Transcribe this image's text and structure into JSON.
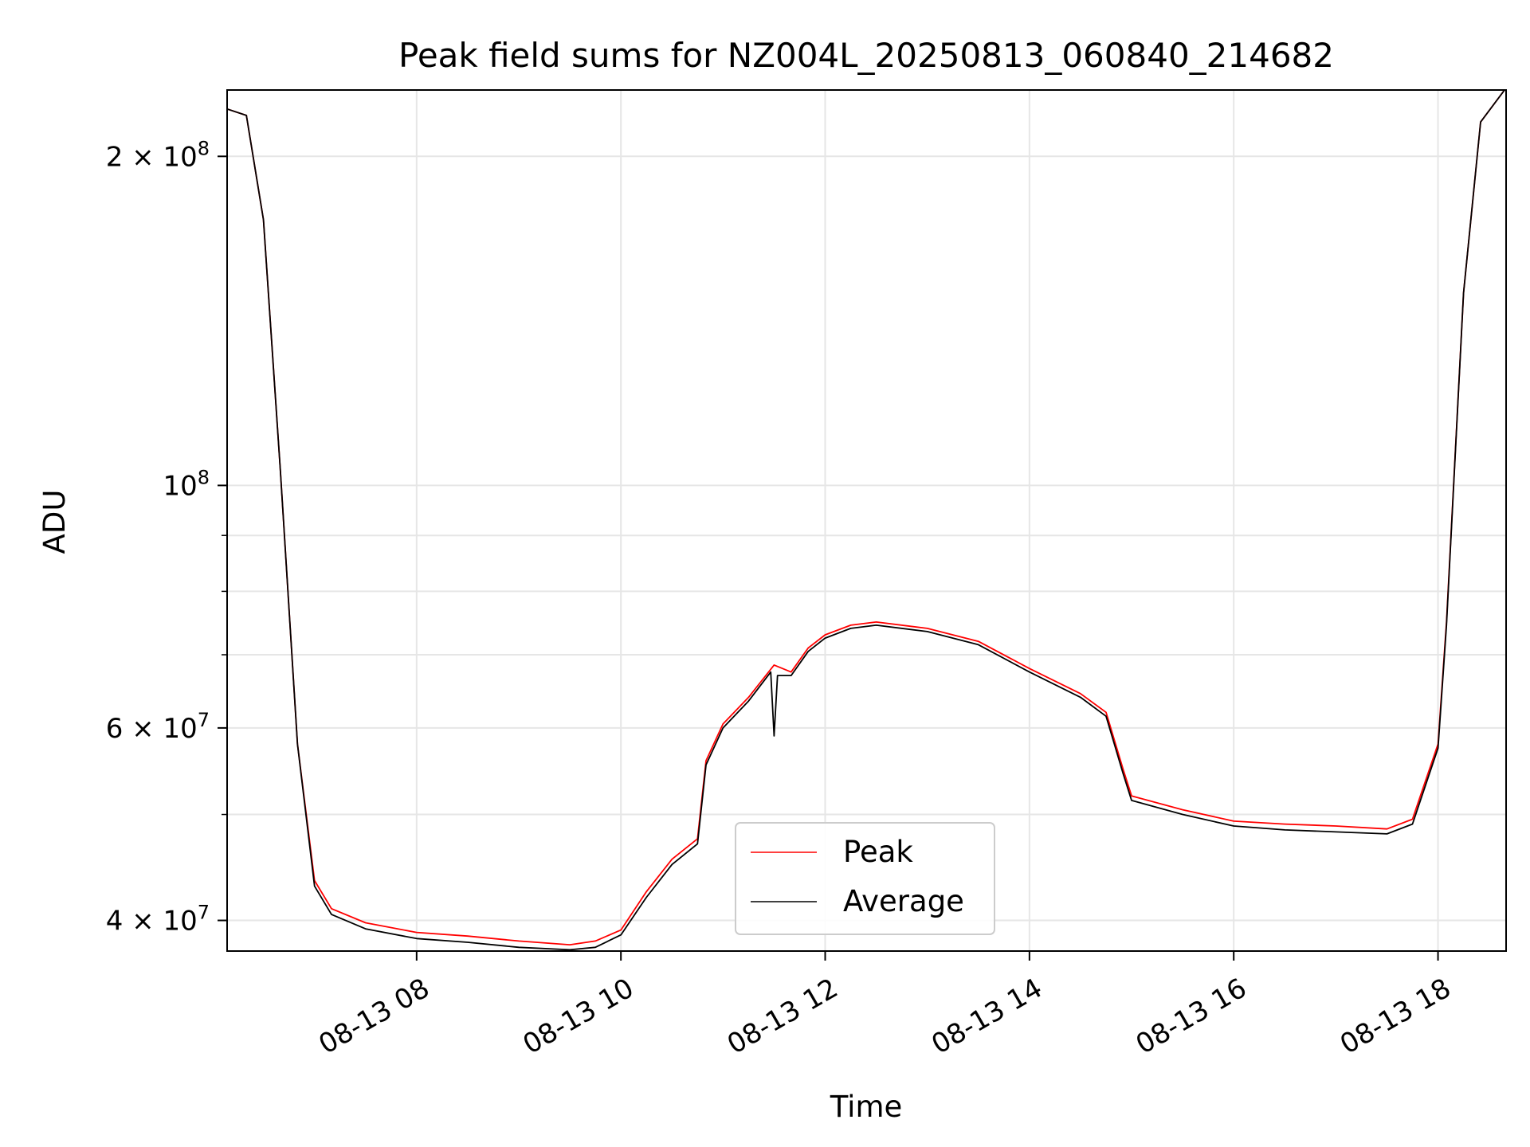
{
  "chart_data": {
    "type": "line",
    "title": "Peak field sums for NZ004L_20250813_060840_214682",
    "xlabel": "Time",
    "ylabel": "ADU",
    "y_scale": "log",
    "ylim": [
      37500000,
      230000000
    ],
    "xlim": [
      "2025-08-13 06:08:40",
      "2025-08-13 18:40:00"
    ],
    "x_ticks": [
      {
        "value": "2025-08-13 08:00",
        "label": "08-13 08"
      },
      {
        "value": "2025-08-13 10:00",
        "label": "08-13 10"
      },
      {
        "value": "2025-08-13 12:00",
        "label": "08-13 12"
      },
      {
        "value": "2025-08-13 14:00",
        "label": "08-13 14"
      },
      {
        "value": "2025-08-13 16:00",
        "label": "08-13 16"
      },
      {
        "value": "2025-08-13 18:00",
        "label": "08-13 18"
      }
    ],
    "y_ticks": [
      {
        "value": 40000000,
        "mantissa": "4",
        "exponent": "7"
      },
      {
        "value": 60000000,
        "mantissa": "6",
        "exponent": "7"
      },
      {
        "value": 100000000,
        "mantissa": "",
        "exponent": "8"
      },
      {
        "value": 200000000,
        "mantissa": "2",
        "exponent": "8"
      }
    ],
    "y_minor_ticks": [
      50000000,
      70000000,
      80000000,
      90000000
    ],
    "grid": true,
    "legend_position": "lower-center",
    "series": [
      {
        "name": "Peak",
        "color": "#ff0000",
        "x": [
          "2025-08-13 06:08:40",
          "2025-08-13 06:20",
          "2025-08-13 06:30",
          "2025-08-13 06:40",
          "2025-08-13 06:50",
          "2025-08-13 07:00",
          "2025-08-13 07:10",
          "2025-08-13 07:30",
          "2025-08-13 08:00",
          "2025-08-13 08:30",
          "2025-08-13 09:00",
          "2025-08-13 09:30",
          "2025-08-13 09:45",
          "2025-08-13 10:00",
          "2025-08-13 10:15",
          "2025-08-13 10:30",
          "2025-08-13 10:45",
          "2025-08-13 10:50",
          "2025-08-13 11:00",
          "2025-08-13 11:15",
          "2025-08-13 11:30",
          "2025-08-13 11:40",
          "2025-08-13 11:50",
          "2025-08-13 12:00",
          "2025-08-13 12:15",
          "2025-08-13 12:30",
          "2025-08-13 13:00",
          "2025-08-13 13:30",
          "2025-08-13 14:00",
          "2025-08-13 14:30",
          "2025-08-13 14:45",
          "2025-08-13 14:55",
          "2025-08-13 15:00",
          "2025-08-13 15:30",
          "2025-08-13 16:00",
          "2025-08-13 16:30",
          "2025-08-13 17:00",
          "2025-08-13 17:30",
          "2025-08-13 17:45",
          "2025-08-13 18:00",
          "2025-08-13 18:05",
          "2025-08-13 18:15",
          "2025-08-13 18:25",
          "2025-08-13 18:40"
        ],
        "values": [
          221000000,
          218000000,
          175000000,
          103000000,
          58000000,
          43500000,
          41000000,
          39800000,
          39000000,
          38700000,
          38300000,
          38000000,
          38300000,
          39200000,
          42500000,
          45500000,
          47500000,
          56000000,
          60500000,
          64000000,
          68500000,
          67500000,
          71000000,
          73000000,
          74500000,
          75000000,
          74000000,
          72000000,
          68000000,
          64500000,
          62000000,
          55000000,
          52000000,
          50500000,
          49300000,
          49000000,
          48800000,
          48500000,
          49500000,
          58000000,
          75000000,
          150000000,
          215000000,
          231000000
        ]
      },
      {
        "name": "Average",
        "color": "#000000",
        "x": [
          "2025-08-13 06:08:40",
          "2025-08-13 06:20",
          "2025-08-13 06:30",
          "2025-08-13 06:40",
          "2025-08-13 06:50",
          "2025-08-13 07:00",
          "2025-08-13 07:10",
          "2025-08-13 07:30",
          "2025-08-13 08:00",
          "2025-08-13 08:30",
          "2025-08-13 09:00",
          "2025-08-13 09:30",
          "2025-08-13 09:45",
          "2025-08-13 10:00",
          "2025-08-13 10:15",
          "2025-08-13 10:30",
          "2025-08-13 10:45",
          "2025-08-13 10:50",
          "2025-08-13 11:00",
          "2025-08-13 11:15",
          "2025-08-13 11:28",
          "2025-08-13 11:30",
          "2025-08-13 11:32",
          "2025-08-13 11:40",
          "2025-08-13 11:50",
          "2025-08-13 12:00",
          "2025-08-13 12:15",
          "2025-08-13 12:30",
          "2025-08-13 13:00",
          "2025-08-13 13:30",
          "2025-08-13 14:00",
          "2025-08-13 14:30",
          "2025-08-13 14:45",
          "2025-08-13 14:55",
          "2025-08-13 15:00",
          "2025-08-13 15:30",
          "2025-08-13 16:00",
          "2025-08-13 16:30",
          "2025-08-13 17:00",
          "2025-08-13 17:30",
          "2025-08-13 17:45",
          "2025-08-13 18:00",
          "2025-08-13 18:05",
          "2025-08-13 18:15",
          "2025-08-13 18:25",
          "2025-08-13 18:40"
        ],
        "values": [
          221000000,
          218000000,
          175000000,
          103000000,
          58000000,
          43000000,
          40500000,
          39300000,
          38500000,
          38200000,
          37800000,
          37600000,
          37800000,
          38800000,
          42000000,
          45000000,
          47000000,
          55500000,
          60000000,
          63500000,
          67500000,
          59000000,
          67000000,
          67000000,
          70500000,
          72500000,
          74000000,
          74500000,
          73500000,
          71500000,
          67500000,
          64000000,
          61500000,
          54500000,
          51500000,
          50000000,
          48800000,
          48400000,
          48200000,
          48000000,
          49000000,
          57500000,
          74500000,
          150000000,
          215000000,
          231000000
        ]
      }
    ]
  }
}
